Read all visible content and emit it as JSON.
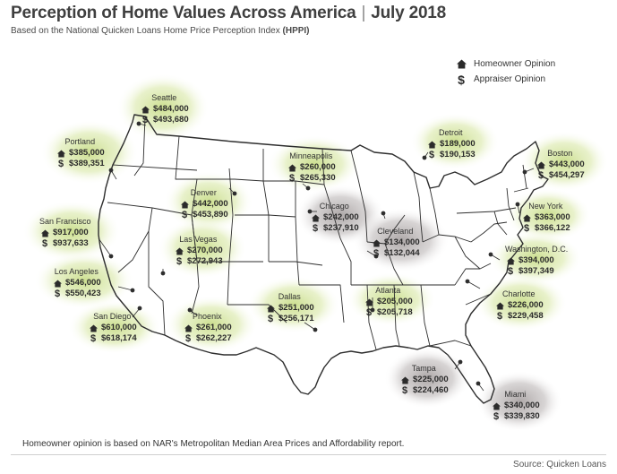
{
  "header": {
    "title": "Perception of Home Values Across America",
    "separator": "|",
    "date": "July 2018",
    "subtitle_prefix": "Based on the National Quicken Loans Home Price Perception Index",
    "subtitle_bold": "(HPPI)"
  },
  "legend": {
    "homeowner_label": "Homeowner Opinion",
    "appraiser_label": "Appraiser Opinion",
    "homeowner_icon": "house-icon",
    "appraiser_icon": "dollar-icon",
    "appraiser_symbol": "$"
  },
  "colors": {
    "positive_halo": "#c9dd8a",
    "negative_halo": "#a9a3a3",
    "state_stroke": "#2e2e2e",
    "text": "#2b2b2b"
  },
  "cities": [
    {
      "id": "seattle",
      "name": "Seattle",
      "homeowner": "$484,000",
      "appraiser": "$493,680",
      "halo": "positive"
    },
    {
      "id": "portland",
      "name": "Portland",
      "homeowner": "$385,000",
      "appraiser": "$389,351",
      "halo": "positive"
    },
    {
      "id": "san-francisco",
      "name": "San Francisco",
      "homeowner": "$917,000",
      "appraiser": "$937,633",
      "halo": "positive"
    },
    {
      "id": "los-angeles",
      "name": "Los Angeles",
      "homeowner": "$546,000",
      "appraiser": "$550,423",
      "halo": "positive"
    },
    {
      "id": "san-diego",
      "name": "San Diego",
      "homeowner": "$610,000",
      "appraiser": "$618,174",
      "halo": "positive"
    },
    {
      "id": "denver",
      "name": "Denver",
      "homeowner": "$442,000",
      "appraiser": "$453,890",
      "halo": "positive"
    },
    {
      "id": "las-vegas",
      "name": "Las Vegas",
      "homeowner": "$270,000",
      "appraiser": "$272,943",
      "halo": "positive"
    },
    {
      "id": "phoenix",
      "name": "Phoenix",
      "homeowner": "$261,000",
      "appraiser": "$262,227",
      "halo": "positive"
    },
    {
      "id": "dallas",
      "name": "Dallas",
      "homeowner": "$251,000",
      "appraiser": "$256,171",
      "halo": "positive"
    },
    {
      "id": "minneapolis",
      "name": "Minneapolis",
      "homeowner": "$260,000",
      "appraiser": "$265,330",
      "halo": "positive"
    },
    {
      "id": "chicago",
      "name": "Chicago",
      "homeowner": "$242,000",
      "appraiser": "$237,910",
      "halo": "negative"
    },
    {
      "id": "cleveland",
      "name": "Cleveland",
      "homeowner": "$134,000",
      "appraiser": "$132,044",
      "halo": "negative"
    },
    {
      "id": "detroit",
      "name": "Detroit",
      "homeowner": "$189,000",
      "appraiser": "$190,153",
      "halo": "positive"
    },
    {
      "id": "boston",
      "name": "Boston",
      "homeowner": "$443,000",
      "appraiser": "$454,297",
      "halo": "positive"
    },
    {
      "id": "new-york",
      "name": "New York",
      "homeowner": "$363,000",
      "appraiser": "$366,122",
      "halo": "positive"
    },
    {
      "id": "washington",
      "name": "Washington, D.C.",
      "homeowner": "$394,000",
      "appraiser": "$397,349",
      "halo": "positive"
    },
    {
      "id": "charlotte",
      "name": "Charlotte",
      "homeowner": "$226,000",
      "appraiser": "$229,458",
      "halo": "positive"
    },
    {
      "id": "atlanta",
      "name": "Atlanta",
      "homeowner": "$205,000",
      "appraiser": "$205,718",
      "halo": "positive"
    },
    {
      "id": "tampa",
      "name": "Tampa",
      "homeowner": "$225,000",
      "appraiser": "$224,460",
      "halo": "negative"
    },
    {
      "id": "miami",
      "name": "Miami",
      "homeowner": "$340,000",
      "appraiser": "$339,830",
      "halo": "negative"
    }
  ],
  "footer": {
    "note": "Homeowner opinion is based on NAR's Metropolitan Median Area Prices and Affordability report.",
    "source": "Source: Quicken Loans"
  }
}
